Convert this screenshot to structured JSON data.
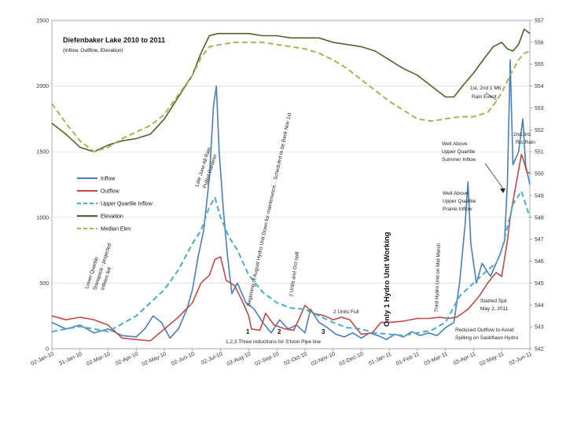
{
  "chart_data": {
    "type": "line",
    "title": "Diefenbaker Lake 2010 to 2011",
    "subtitle": "(Inflow, Outflow, Elevation)",
    "y_left_ticks": [
      "0",
      "500",
      "1000",
      "1500",
      "2000",
      "2500"
    ],
    "ylim_left": [
      0,
      2500
    ],
    "y_right_ticks": [
      "542",
      "543",
      "544",
      "545",
      "546",
      "547",
      "548",
      "549",
      "550",
      "551",
      "552",
      "553",
      "554",
      "555",
      "556",
      "557"
    ],
    "ylim_right": [
      542,
      557
    ],
    "x_ticks": [
      "02-Jan-10",
      "31-Jan-10",
      "02-Mar-10",
      "02-Apr-10",
      "02-May-10",
      "02-Jun-10",
      "02-Jul-10",
      "02-Aug-10",
      "02-Sep-10",
      "02-Oct-10",
      "02-Nov-10",
      "02-Dec-10",
      "01-Jan-11",
      "01-Feb-11",
      "03-Mar-11",
      "02-Apr-11",
      "02-May-11",
      "02-Jun-11"
    ],
    "xlim": [
      0,
      17
    ],
    "grid": true,
    "legend": [
      {
        "name": "Inflow",
        "color": "#4a7ebb",
        "dash": "solid"
      },
      {
        "name": "Outflow",
        "color": "#be4b48",
        "dash": "solid"
      },
      {
        "name": "Upper Quartile Inflow",
        "color": "#4bacc6",
        "dash": "dashed"
      },
      {
        "name": "Elevation",
        "color": "#4f6228",
        "dash": "solid"
      },
      {
        "name": "Median Elev",
        "color": "#9bbb59",
        "dash": "dashed"
      }
    ],
    "series": [
      {
        "name": "Inflow",
        "axis": "left",
        "points": [
          [
            0,
            200
          ],
          [
            0.5,
            150
          ],
          [
            1,
            180
          ],
          [
            1.5,
            120
          ],
          [
            2,
            150
          ],
          [
            2.5,
            100
          ],
          [
            3,
            90
          ],
          [
            3.3,
            150
          ],
          [
            3.6,
            250
          ],
          [
            3.9,
            200
          ],
          [
            4.2,
            80
          ],
          [
            4.5,
            150
          ],
          [
            4.8,
            300
          ],
          [
            5.0,
            450
          ],
          [
            5.2,
            700
          ],
          [
            5.4,
            900
          ],
          [
            5.6,
            1300
          ],
          [
            5.75,
            1850
          ],
          [
            5.85,
            2000
          ],
          [
            5.95,
            1500
          ],
          [
            6.1,
            1050
          ],
          [
            6.25,
            700
          ],
          [
            6.4,
            420
          ],
          [
            6.6,
            500
          ],
          [
            6.9,
            350
          ],
          [
            7.2,
            300
          ],
          [
            7.5,
            200
          ],
          [
            7.8,
            120
          ],
          [
            8.1,
            220
          ],
          [
            8.4,
            150
          ],
          [
            8.7,
            180
          ],
          [
            9.0,
            120
          ],
          [
            9.2,
            300
          ],
          [
            9.5,
            200
          ],
          [
            9.8,
            160
          ],
          [
            10.1,
            110
          ],
          [
            10.4,
            90
          ],
          [
            10.7,
            120
          ],
          [
            11.0,
            80
          ],
          [
            11.3,
            120
          ],
          [
            11.6,
            100
          ],
          [
            11.9,
            70
          ],
          [
            12.2,
            110
          ],
          [
            12.5,
            90
          ],
          [
            12.8,
            130
          ],
          [
            13.1,
            100
          ],
          [
            13.4,
            120
          ],
          [
            13.7,
            100
          ],
          [
            14.0,
            160
          ],
          [
            14.3,
            200
          ],
          [
            14.5,
            500
          ],
          [
            14.7,
            950
          ],
          [
            14.8,
            1270
          ],
          [
            14.9,
            800
          ],
          [
            15.1,
            500
          ],
          [
            15.3,
            650
          ],
          [
            15.6,
            550
          ],
          [
            15.9,
            700
          ],
          [
            16.1,
            820
          ],
          [
            16.2,
            1250
          ],
          [
            16.3,
            2200
          ],
          [
            16.4,
            1400
          ],
          [
            16.6,
            1500
          ],
          [
            16.75,
            1750
          ],
          [
            16.85,
            1400
          ],
          [
            17,
            1250
          ]
        ]
      },
      {
        "name": "Outflow",
        "axis": "left",
        "points": [
          [
            0,
            250
          ],
          [
            0.5,
            220
          ],
          [
            1,
            240
          ],
          [
            1.5,
            220
          ],
          [
            2,
            180
          ],
          [
            2.5,
            80
          ],
          [
            3,
            70
          ],
          [
            3.5,
            60
          ],
          [
            4,
            150
          ],
          [
            4.5,
            240
          ],
          [
            5.0,
            350
          ],
          [
            5.3,
            500
          ],
          [
            5.6,
            560
          ],
          [
            5.8,
            680
          ],
          [
            6.0,
            700
          ],
          [
            6.2,
            520
          ],
          [
            6.5,
            480
          ],
          [
            6.8,
            350
          ],
          [
            7.0,
            250
          ],
          [
            7.1,
            150
          ],
          [
            7.4,
            140
          ],
          [
            7.6,
            270
          ],
          [
            7.9,
            180
          ],
          [
            8.3,
            150
          ],
          [
            8.6,
            140
          ],
          [
            8.8,
            230
          ],
          [
            9.0,
            330
          ],
          [
            9.3,
            270
          ],
          [
            9.7,
            250
          ],
          [
            10.0,
            220
          ],
          [
            10.3,
            240
          ],
          [
            10.6,
            220
          ],
          [
            11.0,
            110
          ],
          [
            11.4,
            120
          ],
          [
            11.7,
            200
          ],
          [
            12.0,
            200
          ],
          [
            12.5,
            210
          ],
          [
            13.0,
            230
          ],
          [
            13.4,
            230
          ],
          [
            13.8,
            240
          ],
          [
            14.1,
            230
          ],
          [
            14.4,
            240
          ],
          [
            14.8,
            300
          ],
          [
            15.2,
            400
          ],
          [
            15.5,
            500
          ],
          [
            15.8,
            580
          ],
          [
            16.0,
            550
          ],
          [
            16.2,
            820
          ],
          [
            16.3,
            1000
          ],
          [
            16.5,
            1240
          ],
          [
            16.7,
            1480
          ],
          [
            16.8,
            1420
          ],
          [
            16.9,
            1340
          ],
          [
            17,
            1340
          ]
        ]
      },
      {
        "name": "Upper Quartile Inflow",
        "axis": "left",
        "points": [
          [
            0,
            130
          ],
          [
            1,
            170
          ],
          [
            2,
            130
          ],
          [
            3,
            250
          ],
          [
            3.5,
            350
          ],
          [
            4,
            450
          ],
          [
            4.5,
            600
          ],
          [
            5.0,
            800
          ],
          [
            5.3,
            900
          ],
          [
            5.6,
            1080
          ],
          [
            5.8,
            1150
          ],
          [
            6.0,
            1000
          ],
          [
            6.3,
            850
          ],
          [
            6.6,
            750
          ],
          [
            7.0,
            560
          ],
          [
            7.5,
            430
          ],
          [
            8.0,
            350
          ],
          [
            8.5,
            310
          ],
          [
            9.0,
            300
          ],
          [
            9.5,
            250
          ],
          [
            10.0,
            200
          ],
          [
            10.5,
            160
          ],
          [
            11.0,
            150
          ],
          [
            11.5,
            120
          ],
          [
            12.0,
            110
          ],
          [
            12.5,
            100
          ],
          [
            13.0,
            120
          ],
          [
            13.5,
            140
          ],
          [
            14.0,
            200
          ],
          [
            14.5,
            400
          ],
          [
            15.0,
            500
          ],
          [
            15.5,
            600
          ],
          [
            15.8,
            650
          ],
          [
            16.0,
            750
          ],
          [
            16.4,
            1100
          ],
          [
            16.7,
            1200
          ],
          [
            17,
            1000
          ]
        ]
      },
      {
        "name": "Elevation",
        "axis": "right",
        "points": [
          [
            0,
            552.3
          ],
          [
            0.5,
            551.8
          ],
          [
            1,
            551.2
          ],
          [
            1.5,
            551.0
          ],
          [
            2,
            551.3
          ],
          [
            2.5,
            551.5
          ],
          [
            3,
            551.6
          ],
          [
            3.5,
            551.8
          ],
          [
            4,
            552.5
          ],
          [
            4.5,
            553.5
          ],
          [
            5.0,
            554.5
          ],
          [
            5.3,
            555.5
          ],
          [
            5.6,
            556.3
          ],
          [
            5.9,
            556.4
          ],
          [
            6.5,
            556.4
          ],
          [
            7.0,
            556.4
          ],
          [
            7.5,
            556.3
          ],
          [
            8.0,
            556.3
          ],
          [
            8.5,
            556.2
          ],
          [
            9.0,
            556.2
          ],
          [
            9.5,
            556.2
          ],
          [
            10.0,
            556.0
          ],
          [
            10.5,
            555.9
          ],
          [
            11.0,
            555.8
          ],
          [
            11.5,
            555.6
          ],
          [
            12.0,
            555.2
          ],
          [
            12.5,
            554.8
          ],
          [
            13.0,
            554.5
          ],
          [
            13.5,
            554.0
          ],
          [
            14.0,
            553.5
          ],
          [
            14.3,
            553.5
          ],
          [
            14.6,
            554.0
          ],
          [
            15.0,
            554.6
          ],
          [
            15.4,
            555.3
          ],
          [
            15.7,
            555.8
          ],
          [
            16.0,
            556.0
          ],
          [
            16.2,
            555.7
          ],
          [
            16.4,
            555.6
          ],
          [
            16.6,
            555.9
          ],
          [
            16.8,
            556.6
          ],
          [
            17,
            556.4
          ]
        ]
      },
      {
        "name": "Median Elev",
        "axis": "right",
        "points": [
          [
            0,
            553.2
          ],
          [
            0.5,
            552.3
          ],
          [
            1,
            551.5
          ],
          [
            1.5,
            551.0
          ],
          [
            2,
            551.2
          ],
          [
            2.5,
            551.6
          ],
          [
            3,
            551.9
          ],
          [
            3.5,
            552.2
          ],
          [
            4,
            552.7
          ],
          [
            4.5,
            553.6
          ],
          [
            5.0,
            554.5
          ],
          [
            5.3,
            555.3
          ],
          [
            5.6,
            555.8
          ],
          [
            6.0,
            555.9
          ],
          [
            6.5,
            556.0
          ],
          [
            7.0,
            556.0
          ],
          [
            7.5,
            556.0
          ],
          [
            8.0,
            555.9
          ],
          [
            8.5,
            555.8
          ],
          [
            9.0,
            555.7
          ],
          [
            9.5,
            555.5
          ],
          [
            10.0,
            555.2
          ],
          [
            10.5,
            554.8
          ],
          [
            11.0,
            554.3
          ],
          [
            11.5,
            553.8
          ],
          [
            12.0,
            553.3
          ],
          [
            12.5,
            552.9
          ],
          [
            13.0,
            552.5
          ],
          [
            13.5,
            552.4
          ],
          [
            14.0,
            552.5
          ],
          [
            14.5,
            552.6
          ],
          [
            15.0,
            552.6
          ],
          [
            15.5,
            552.8
          ],
          [
            15.8,
            553.3
          ],
          [
            16.0,
            553.7
          ],
          [
            16.3,
            554.5
          ],
          [
            16.6,
            555.2
          ],
          [
            16.8,
            555.5
          ],
          [
            17,
            555.6
          ]
        ]
      }
    ],
    "annotations": [
      {
        "text": "1st, 2nd 1 Mb",
        "ax": 0,
        "ay": 0
      },
      {
        "text": "Rain Event",
        "ax": 0,
        "ay": 0
      },
      {
        "text": "2nd,3rd",
        "ax": 0,
        "ay": 0
      },
      {
        "text": "Rtc Rain",
        "ax": 0,
        "ay": 0
      },
      {
        "text": "Well Above",
        "ax": 0,
        "ay": 0
      },
      {
        "text": "Upper Quartile",
        "ax": 0,
        "ay": 0
      },
      {
        "text": "Summer Inflow",
        "ax": 0,
        "ay": 0
      },
      {
        "text": "Well Above",
        "ax": 0,
        "ay": 0
      },
      {
        "text": "Upper Quartile",
        "ax": 0,
        "ay": 0
      },
      {
        "text": "Prairie Inflow",
        "ax": 0,
        "ay": 0
      },
      {
        "text": "Started Spil",
        "ax": 0,
        "ay": 0
      },
      {
        "text": "May 2, 2011",
        "ax": 0,
        "ay": 0
      },
      {
        "text": "Reduced Outflow to Avoid",
        "ax": 0,
        "ay": 0
      },
      {
        "text": "Spilling on Saskflaws Hydro",
        "ax": 0,
        "ay": 0
      },
      {
        "text": "2 Units Full",
        "ax": 0,
        "ay": 0
      },
      {
        "text": "1,2,3   Three reductions for S'toon Pipe line",
        "ax": 0,
        "ay": 0
      },
      {
        "text": "1",
        "ax": 0,
        "ay": 0
      },
      {
        "text": "2",
        "ax": 0,
        "ay": 0
      },
      {
        "text": "3",
        "ax": 0,
        "ay": 0
      }
    ],
    "rotated_annotations": [
      "Lower Quartile",
      "Snowpack - projected",
      "Inflows fell",
      "Late June  All Rain",
      "Pulled Gardiner",
      "Beginning of August Hydro Unit Down for maintenance... Scheduled to be Back Nov 1st",
      "2 Units and Oct spill",
      "Only 1 Hydro Unit Working",
      "Third Hydro Unit on Mid March"
    ]
  }
}
